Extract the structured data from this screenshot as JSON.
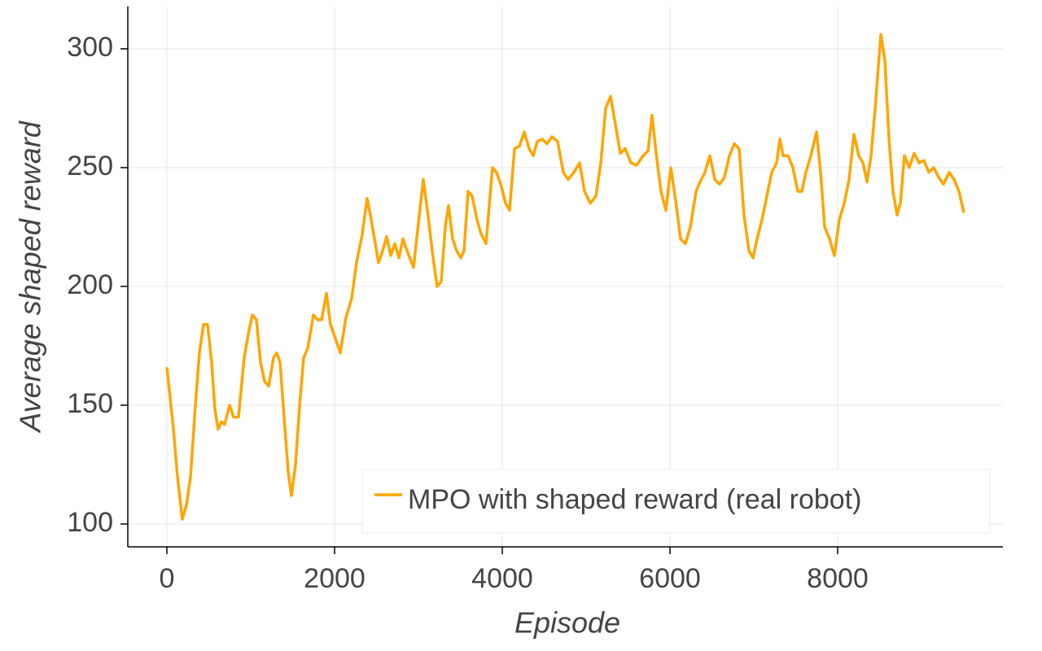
{
  "chart_data": {
    "type": "line",
    "xlabel": "Episode",
    "ylabel": "Average shaped reward",
    "xlim": [
      -466,
      9971
    ],
    "ylim": [
      90.4,
      317.8
    ],
    "xticks": [
      0,
      2000,
      4000,
      6000,
      8000
    ],
    "yticks": [
      100,
      150,
      200,
      250,
      300
    ],
    "grid": true,
    "legend": "lower right",
    "x": [
      0,
      78,
      126,
      184,
      233,
      282,
      340,
      388,
      437,
      485,
      534,
      573,
      612,
      650,
      689,
      748,
      796,
      854,
      922,
      971,
      1019,
      1068,
      1117,
      1165,
      1214,
      1272,
      1311,
      1350,
      1408,
      1447,
      1485,
      1534,
      1583,
      1631,
      1680,
      1748,
      1796,
      1845,
      1903,
      1951,
      2010,
      2068,
      2136,
      2204,
      2262,
      2330,
      2388,
      2427,
      2476,
      2524,
      2573,
      2621,
      2670,
      2718,
      2767,
      2816,
      2864,
      2942,
      3010,
      3058,
      3107,
      3175,
      3223,
      3272,
      3320,
      3359,
      3408,
      3456,
      3505,
      3544,
      3592,
      3641,
      3699,
      3748,
      3806,
      3883,
      3932,
      3990,
      4039,
      4087,
      4146,
      4204,
      4262,
      4320,
      4369,
      4417,
      4476,
      4534,
      4592,
      4660,
      4728,
      4786,
      4854,
      4922,
      4981,
      5049,
      5117,
      5175,
      5233,
      5291,
      5350,
      5408,
      5466,
      5534,
      5602,
      5680,
      5738,
      5786,
      5835,
      5893,
      5951,
      6010,
      6068,
      6126,
      6184,
      6243,
      6311,
      6359,
      6417,
      6476,
      6534,
      6592,
      6650,
      6709,
      6767,
      6825,
      6883,
      6942,
      6990,
      7039,
      7097,
      7155,
      7214,
      7272,
      7311,
      7350,
      7408,
      7466,
      7524,
      7573,
      7621,
      7680,
      7748,
      7796,
      7845,
      7903,
      7961,
      8019,
      8078,
      8136,
      8194,
      8252,
      8301,
      8350,
      8398,
      8447,
      8515,
      8563,
      8612,
      8660,
      8709,
      8748,
      8796,
      8854,
      8913,
      8971,
      9029,
      9087,
      9146,
      9204,
      9262,
      9330,
      9388,
      9447,
      9505
    ],
    "series": [
      {
        "name": "MPO with shaped reward (real robot)",
        "color": "#ffa500",
        "values": [
          166,
          140,
          120,
          102,
          108,
          120,
          150,
          172,
          184,
          184,
          168,
          148,
          140,
          143,
          142,
          150,
          145,
          145,
          170,
          180,
          188,
          186,
          168,
          160,
          158,
          170,
          172,
          168,
          140,
          122,
          112,
          125,
          150,
          170,
          174,
          188,
          186,
          186,
          197,
          184,
          178,
          172,
          187,
          195,
          210,
          222,
          237,
          230,
          220,
          210,
          215,
          221,
          213,
          218,
          212,
          220,
          215,
          208,
          230,
          245,
          232,
          212,
          200,
          202,
          225,
          234,
          220,
          215,
          212,
          215,
          240,
          238,
          228,
          222,
          218,
          250,
          248,
          242,
          235,
          232,
          258,
          259,
          265,
          258,
          255,
          261,
          262,
          260,
          263,
          261,
          248,
          245,
          248,
          252,
          240,
          235,
          238,
          252,
          275,
          280,
          268,
          256,
          258,
          252,
          251,
          255,
          257,
          272,
          256,
          240,
          232,
          250,
          236,
          220,
          218,
          225,
          240,
          244,
          248,
          255,
          245,
          243,
          246,
          255,
          260,
          258,
          230,
          215,
          212,
          220,
          228,
          238,
          248,
          252,
          262,
          255,
          255,
          250,
          240,
          240,
          248,
          255,
          265,
          248,
          225,
          220,
          213,
          228,
          235,
          245,
          264,
          255,
          252,
          244,
          255,
          275,
          306,
          295,
          262,
          240,
          230,
          235,
          255,
          250,
          256,
          252,
          253,
          248,
          250,
          246,
          243,
          248,
          245,
          240,
          231
        ]
      }
    ]
  }
}
